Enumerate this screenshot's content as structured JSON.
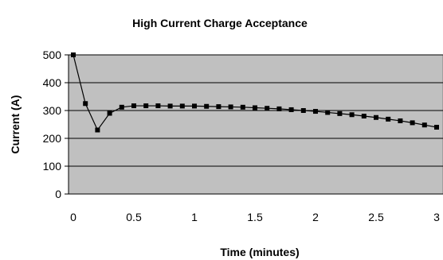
{
  "chart_data": {
    "type": "line",
    "title": "High Current Charge Acceptance",
    "xlabel": "Time (minutes)",
    "ylabel": "Current (A)",
    "xlim": [
      0,
      3
    ],
    "ylim": [
      0,
      500
    ],
    "x_ticks": [
      "0",
      "0.5",
      "1",
      "1.5",
      "2",
      "2.5",
      "3"
    ],
    "y_ticks": [
      "0",
      "100",
      "200",
      "300",
      "400",
      "500"
    ],
    "grid": "horizontal",
    "legend": "none",
    "colors": {
      "plot_background": "#c0c0c0",
      "line": "#000000",
      "gridline": "#000000"
    },
    "series": [
      {
        "x": [
          0.0,
          0.1,
          0.2,
          0.3,
          0.4,
          0.5,
          0.6,
          0.7,
          0.8,
          0.9,
          1.0,
          1.1,
          1.2,
          1.3,
          1.4,
          1.5,
          1.6,
          1.7,
          1.8,
          1.9,
          2.0,
          2.1,
          2.2,
          2.3,
          2.4,
          2.5,
          2.6,
          2.7,
          2.8,
          2.9,
          3.0
        ],
        "values": [
          500,
          325,
          230,
          290,
          312,
          317,
          317,
          317,
          316,
          316,
          316,
          315,
          314,
          313,
          312,
          310,
          308,
          306,
          303,
          300,
          297,
          293,
          289,
          285,
          280,
          275,
          269,
          263,
          256,
          248,
          240
        ]
      }
    ]
  }
}
